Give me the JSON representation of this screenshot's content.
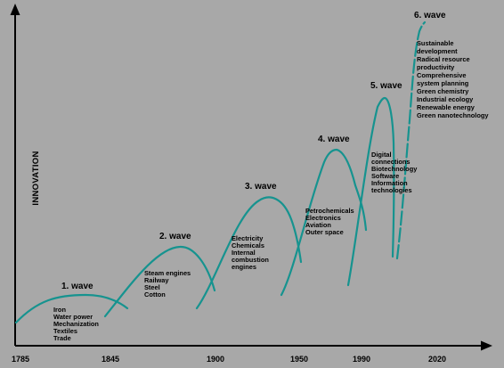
{
  "diagram": {
    "y_axis_label": "INNOVATION",
    "curve_color": "#16938f",
    "x_ticks": [
      "1785",
      "1845",
      "1900",
      "1950",
      "1990",
      "2020"
    ],
    "waves": [
      {
        "title": "1. wave",
        "items": [
          "Iron",
          "Water power",
          "Mechanization",
          "Textiles",
          "Trade"
        ]
      },
      {
        "title": "2. wave",
        "items": [
          "Steam engines",
          "Railway",
          "Steel",
          "Cotton"
        ]
      },
      {
        "title": "3. wave",
        "items": [
          "Electricity",
          "Chemicals",
          "Internal",
          "combustion",
          "engines"
        ]
      },
      {
        "title": "4. wave",
        "items": [
          "Petrochemicals",
          "Electronics",
          "Aviation",
          "Outer space"
        ]
      },
      {
        "title": "5. wave",
        "items": [
          "Digital",
          "connections",
          "Biotechnology",
          "Software",
          "Information",
          "technologies"
        ]
      },
      {
        "title": "6. wave",
        "items": [
          "Sustainable",
          "development",
          "Radical resource",
          "productivity",
          "Comprehensive",
          "system planning",
          "Green chemistry",
          "Industrial ecology",
          "Renewable energy",
          "Green nanotechnology"
        ]
      }
    ]
  }
}
